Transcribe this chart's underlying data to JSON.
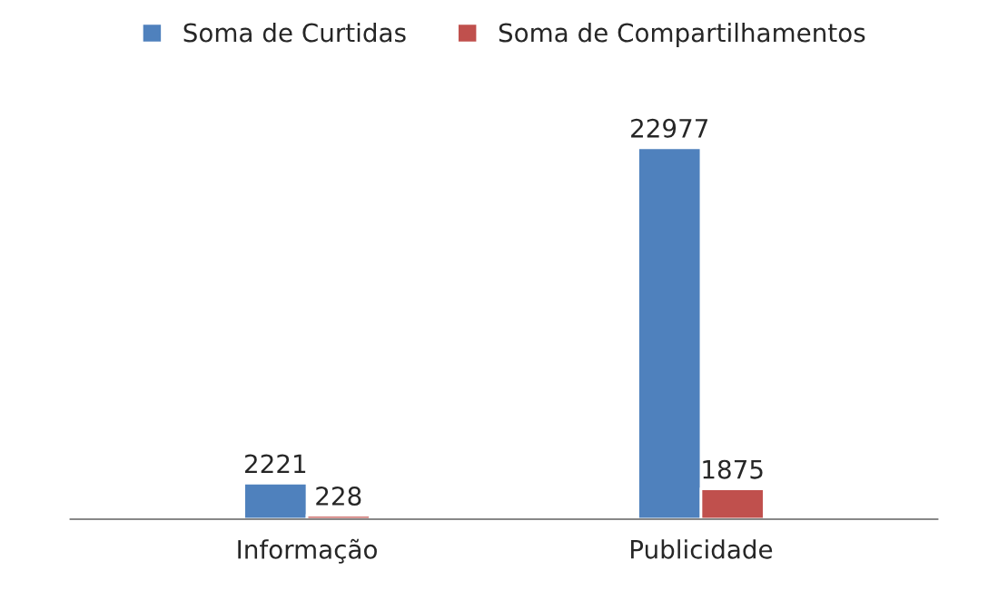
{
  "chart_data": {
    "type": "bar",
    "categories": [
      "Informação",
      "Publicidade"
    ],
    "series": [
      {
        "name": "Soma de Curtidas",
        "color": "#4f81bd",
        "values": [
          2221,
          22977
        ]
      },
      {
        "name": "Soma de Compartilhamentos",
        "color": "#c0504d",
        "values": [
          228,
          1875
        ]
      }
    ],
    "data_labels": true,
    "legend": "top",
    "grid": false
  }
}
